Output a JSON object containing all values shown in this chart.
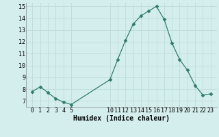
{
  "x": [
    0,
    1,
    2,
    3,
    4,
    5,
    10,
    11,
    12,
    13,
    14,
    15,
    16,
    17,
    18,
    19,
    20,
    21,
    22,
    23
  ],
  "y": [
    7.8,
    8.2,
    7.7,
    7.2,
    6.9,
    6.7,
    8.8,
    10.5,
    12.1,
    13.5,
    14.2,
    14.6,
    15.0,
    13.9,
    11.9,
    10.5,
    9.6,
    8.3,
    7.5,
    7.6
  ],
  "line_color": "#2e7d6e",
  "marker_color": "#2e7d6e",
  "bg_color": "#d4eeed",
  "grid_color": "#c0dedd",
  "xlabel": "Humidex (Indice chaleur)",
  "ylim": [
    6.5,
    15.3
  ],
  "xlim": [
    -0.8,
    23.8
  ],
  "yticks": [
    7,
    8,
    9,
    10,
    11,
    12,
    13,
    14,
    15
  ],
  "xticks": [
    0,
    1,
    2,
    3,
    4,
    5,
    10,
    11,
    12,
    13,
    14,
    15,
    16,
    17,
    18,
    19,
    20,
    21,
    22,
    23
  ],
  "tick_fontsize": 6.0,
  "xlabel_fontsize": 7.0
}
